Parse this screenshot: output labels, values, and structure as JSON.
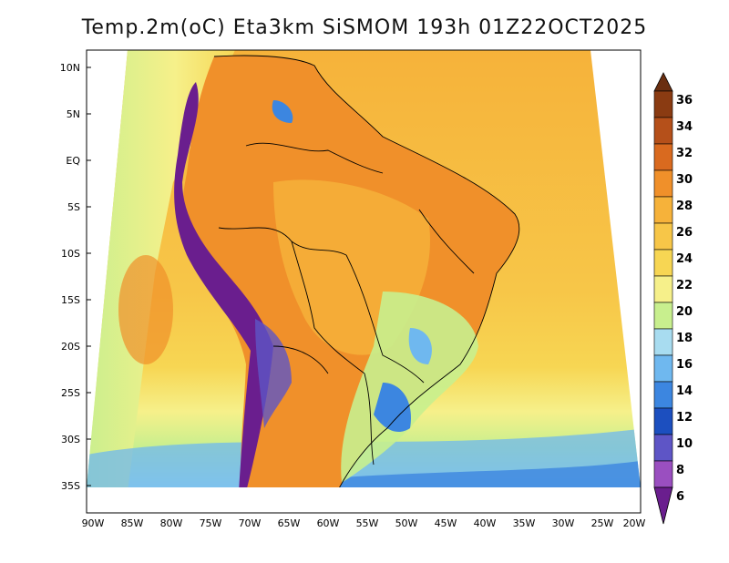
{
  "title": "Temp.2m(oC) Eta3km SiSMOM 193h 01Z22OCT2025",
  "lat_labels": [
    "10N",
    "5N",
    "EQ",
    "5S",
    "10S",
    "15S",
    "20S",
    "25S",
    "30S",
    "35S"
  ],
  "lon_labels": [
    "90W",
    "85W",
    "80W",
    "75W",
    "70W",
    "65W",
    "60W",
    "55W",
    "50W",
    "45W",
    "40W",
    "35W",
    "30W",
    "25W",
    "20W"
  ],
  "colorbar": {
    "labels": [
      "36",
      "34",
      "32",
      "30",
      "28",
      "26",
      "24",
      "22",
      "20",
      "18",
      "16",
      "14",
      "12",
      "10",
      "8",
      "6"
    ],
    "colors": [
      "#6a2e10",
      "#8a3b12",
      "#b5501a",
      "#d96a1f",
      "#f0902a",
      "#f6b23a",
      "#f7d653",
      "#f6f08a",
      "#c8ef8e",
      "#a8dcf0",
      "#6fb8ef",
      "#3c86e0",
      "#1c4fbf",
      "#2a2f8f",
      "#5e55c6",
      "#9a4fc0",
      "#6a1e8e"
    ]
  },
  "colors": {
    "ocean_warm": "#f6b23a",
    "ocean_mid": "#f7d653",
    "ocean_cool": "#f6f08a",
    "ocean_cold": "#c8ef8e",
    "andes": "#6a1e8e",
    "land": "#f0902a"
  }
}
